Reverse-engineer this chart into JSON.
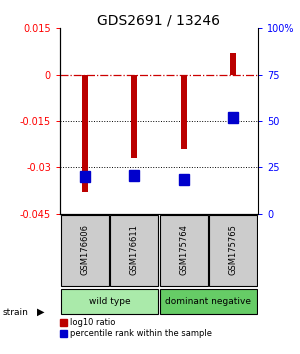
{
  "title": "GDS2691 / 13246",
  "samples": [
    "GSM176606",
    "GSM176611",
    "GSM175764",
    "GSM175765"
  ],
  "log10_ratio": [
    -0.038,
    -0.027,
    -0.024,
    0.007
  ],
  "percentile_rank": [
    20.0,
    20.5,
    18.5,
    52.0
  ],
  "ylim_left": [
    -0.045,
    0.015
  ],
  "ylim_right": [
    0,
    100
  ],
  "yticks_left": [
    -0.045,
    -0.03,
    -0.015,
    0,
    0.015
  ],
  "yticks_right": [
    0,
    25,
    50,
    75,
    100
  ],
  "ytick_labels_left": [
    "-0.045",
    "-0.03",
    "-0.015",
    "0",
    "0.015"
  ],
  "ytick_labels_right": [
    "0",
    "25",
    "50",
    "75",
    "100%"
  ],
  "hlines": [
    -0.015,
    -0.03
  ],
  "bar_color": "#bb0000",
  "blue_color": "#0000cc",
  "bar_width": 0.12,
  "groups": [
    {
      "label": "wild type",
      "color": "#aaeaaa"
    },
    {
      "label": "dominant negative",
      "color": "#66cc66"
    }
  ],
  "strain_label": "strain",
  "legend_red": "log10 ratio",
  "legend_blue": "percentile rank within the sample",
  "bg_color": "#ffffff",
  "sample_box_color": "#cccccc",
  "title_fontsize": 10,
  "tick_fontsize": 7
}
